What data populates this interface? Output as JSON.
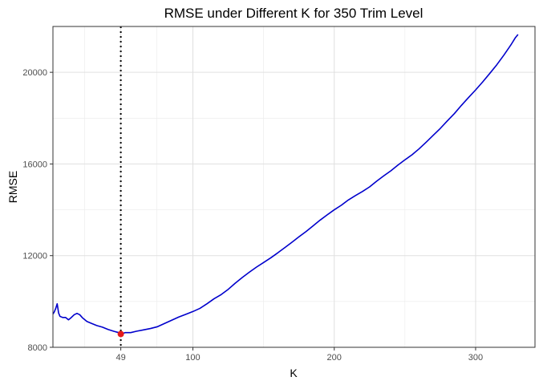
{
  "chart_data": {
    "type": "line",
    "title": "RMSE under Different K for 350 Trim Level",
    "xlabel": "K",
    "ylabel": "RMSE",
    "xlim": [
      1,
      342
    ],
    "ylim": [
      8000,
      22000
    ],
    "x_ticks": [
      49,
      100,
      200,
      300
    ],
    "y_ticks": [
      8000,
      12000,
      16000,
      20000
    ],
    "grid": true,
    "legend": "none",
    "series": [
      {
        "color": "#0000cc",
        "points": [
          [
            1,
            9450
          ],
          [
            2,
            9550
          ],
          [
            3,
            9700
          ],
          [
            4,
            9900
          ],
          [
            5,
            9500
          ],
          [
            6,
            9350
          ],
          [
            8,
            9300
          ],
          [
            10,
            9300
          ],
          [
            12,
            9200
          ],
          [
            14,
            9300
          ],
          [
            16,
            9420
          ],
          [
            18,
            9480
          ],
          [
            20,
            9420
          ],
          [
            22,
            9280
          ],
          [
            25,
            9130
          ],
          [
            28,
            9050
          ],
          [
            32,
            8950
          ],
          [
            36,
            8880
          ],
          [
            40,
            8780
          ],
          [
            44,
            8700
          ],
          [
            47,
            8650
          ],
          [
            49,
            8580
          ],
          [
            52,
            8640
          ],
          [
            56,
            8640
          ],
          [
            60,
            8700
          ],
          [
            65,
            8760
          ],
          [
            70,
            8820
          ],
          [
            75,
            8900
          ],
          [
            80,
            9040
          ],
          [
            85,
            9180
          ],
          [
            90,
            9320
          ],
          [
            95,
            9440
          ],
          [
            100,
            9560
          ],
          [
            105,
            9700
          ],
          [
            110,
            9900
          ],
          [
            115,
            10120
          ],
          [
            120,
            10300
          ],
          [
            125,
            10530
          ],
          [
            130,
            10800
          ],
          [
            135,
            11050
          ],
          [
            140,
            11280
          ],
          [
            145,
            11500
          ],
          [
            150,
            11700
          ],
          [
            155,
            11900
          ],
          [
            160,
            12120
          ],
          [
            165,
            12350
          ],
          [
            170,
            12580
          ],
          [
            175,
            12820
          ],
          [
            180,
            13050
          ],
          [
            185,
            13300
          ],
          [
            190,
            13550
          ],
          [
            195,
            13780
          ],
          [
            200,
            14000
          ],
          [
            205,
            14200
          ],
          [
            210,
            14430
          ],
          [
            215,
            14620
          ],
          [
            220,
            14800
          ],
          [
            225,
            15000
          ],
          [
            230,
            15250
          ],
          [
            235,
            15480
          ],
          [
            240,
            15700
          ],
          [
            245,
            15950
          ],
          [
            250,
            16180
          ],
          [
            255,
            16400
          ],
          [
            260,
            16660
          ],
          [
            265,
            16950
          ],
          [
            270,
            17250
          ],
          [
            275,
            17550
          ],
          [
            280,
            17880
          ],
          [
            285,
            18200
          ],
          [
            290,
            18560
          ],
          [
            295,
            18900
          ],
          [
            300,
            19230
          ],
          [
            305,
            19580
          ],
          [
            310,
            19950
          ],
          [
            315,
            20330
          ],
          [
            320,
            20750
          ],
          [
            325,
            21200
          ],
          [
            328,
            21500
          ],
          [
            330,
            21650
          ]
        ]
      }
    ],
    "min_point": {
      "x": 49,
      "y": 8580,
      "color": "#e41a1c"
    },
    "vline": {
      "x": 49,
      "style": "dotted",
      "color": "#000000"
    }
  }
}
